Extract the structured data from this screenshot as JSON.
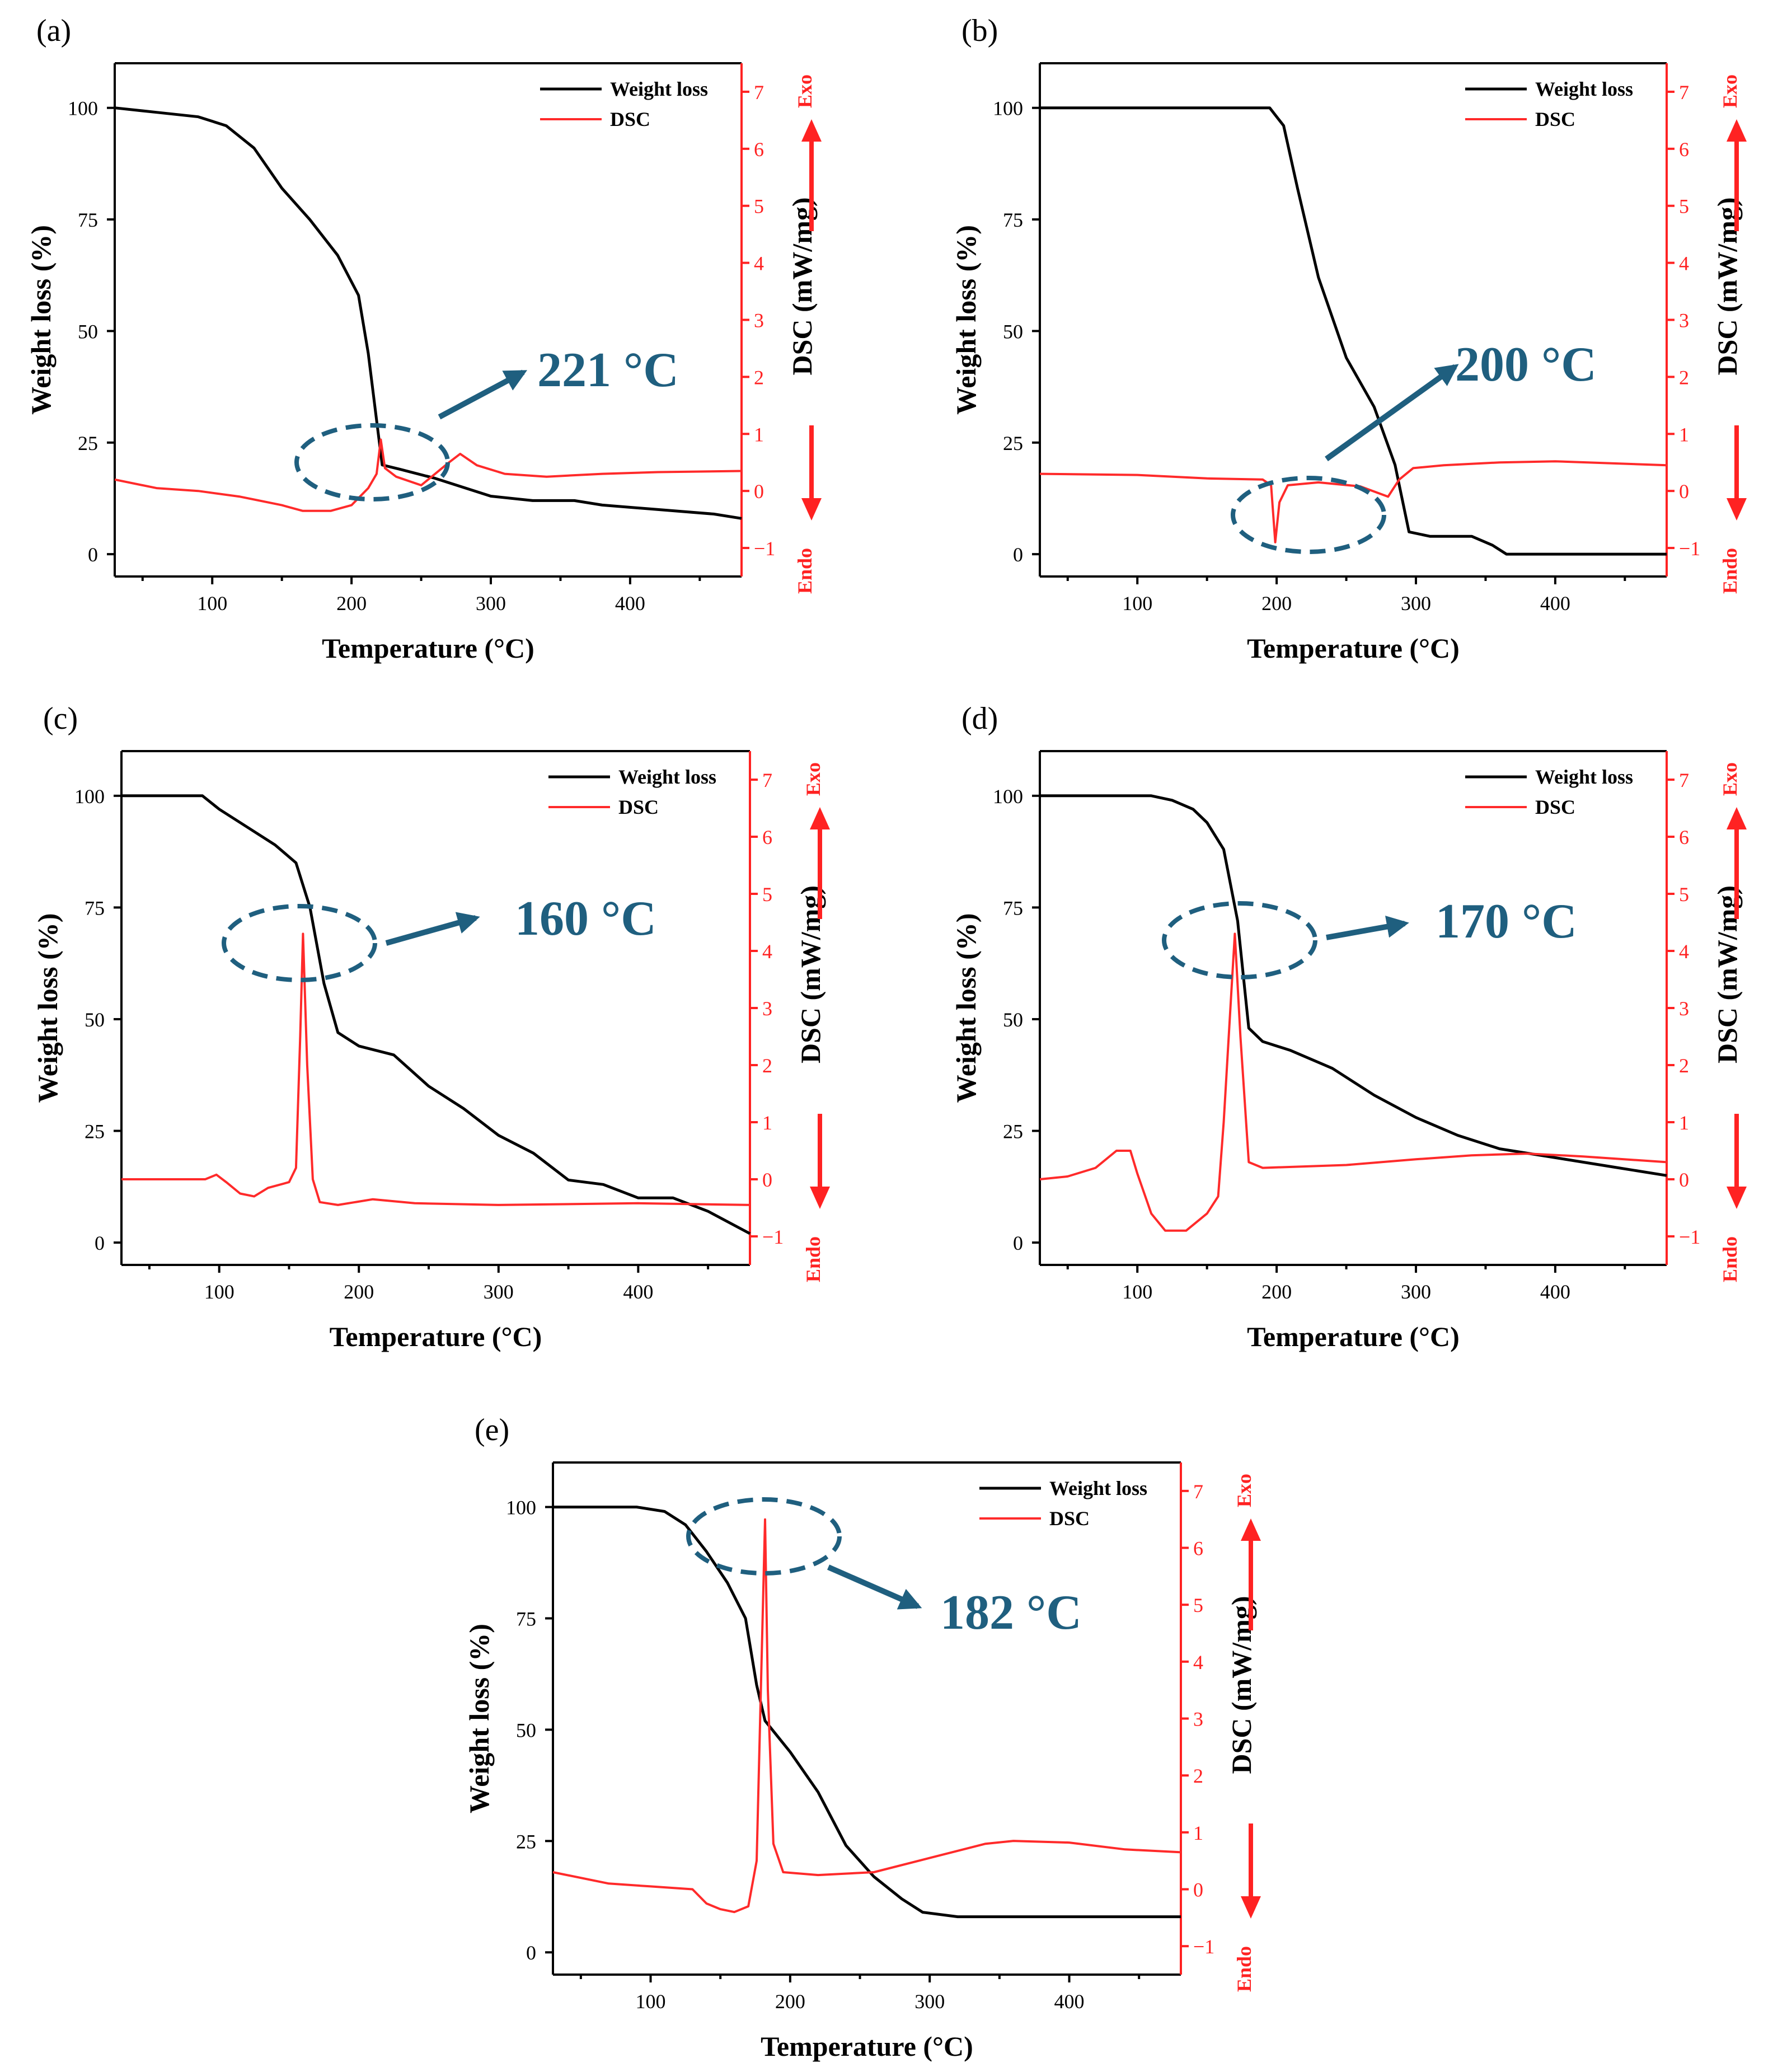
{
  "colors": {
    "weight": "#000000",
    "dsc": "#ff2a2a",
    "annotation": "#1f5f7f",
    "axis_red": "#ff2222"
  },
  "shared": {
    "xlabel": "Temperature (°C)",
    "ylabel_left": "Weight loss (%)",
    "ylabel_right": "DSC (mW/mg)",
    "legend": [
      "Weight loss",
      "DSC"
    ],
    "exo_label": "Exo",
    "endo_label": "Endo"
  },
  "chart_data": [
    {
      "panel": "(a)",
      "type": "line",
      "annotation": "221 °C",
      "xlabel": "Temperature (°C)",
      "ylabel": "Weight loss (%)",
      "y2label": "DSC (mW/mg)",
      "xlim": [
        30,
        480
      ],
      "ylim": [
        -5,
        110
      ],
      "y2lim": [
        -1.5,
        7.5
      ],
      "xticks": [
        100,
        200,
        300,
        400
      ],
      "yticks": [
        0,
        25,
        50,
        75,
        100
      ],
      "y2ticks": [
        -1,
        0,
        1,
        2,
        3,
        4,
        5,
        6,
        7
      ],
      "series": [
        {
          "name": "Weight loss",
          "points": [
            [
              30,
              100
            ],
            [
              60,
              99
            ],
            [
              90,
              98
            ],
            [
              110,
              96
            ],
            [
              130,
              91
            ],
            [
              150,
              82
            ],
            [
              170,
              75
            ],
            [
              190,
              67
            ],
            [
              205,
              58
            ],
            [
              212,
              45
            ],
            [
              218,
              30
            ],
            [
              222,
              20
            ],
            [
              235,
              19
            ],
            [
              260,
              17
            ],
            [
              300,
              13
            ],
            [
              330,
              12
            ],
            [
              360,
              12
            ],
            [
              380,
              11
            ],
            [
              420,
              10
            ],
            [
              460,
              9
            ],
            [
              480,
              8
            ]
          ]
        },
        {
          "name": "DSC",
          "points": [
            [
              30,
              0.2
            ],
            [
              60,
              0.05
            ],
            [
              90,
              0
            ],
            [
              120,
              -0.1
            ],
            [
              150,
              -0.25
            ],
            [
              165,
              -0.35
            ],
            [
              185,
              -0.35
            ],
            [
              200,
              -0.25
            ],
            [
              212,
              0.05
            ],
            [
              218,
              0.3
            ],
            [
              221,
              0.9
            ],
            [
              224,
              0.4
            ],
            [
              232,
              0.25
            ],
            [
              250,
              0.1
            ],
            [
              270,
              0.5
            ],
            [
              278,
              0.65
            ],
            [
              290,
              0.45
            ],
            [
              310,
              0.3
            ],
            [
              340,
              0.25
            ],
            [
              380,
              0.3
            ],
            [
              420,
              0.33
            ],
            [
              480,
              0.35
            ]
          ]
        }
      ]
    },
    {
      "panel": "(b)",
      "type": "line",
      "annotation": "200 °C",
      "xlabel": "Temperature (°C)",
      "ylabel": "Weight loss (%)",
      "y2label": "DSC (mW/mg)",
      "xlim": [
        30,
        480
      ],
      "ylim": [
        -5,
        110
      ],
      "y2lim": [
        -1.5,
        7.5
      ],
      "xticks": [
        100,
        200,
        300,
        400
      ],
      "yticks": [
        0,
        25,
        50,
        75,
        100
      ],
      "y2ticks": [
        -1,
        0,
        1,
        2,
        3,
        4,
        5,
        6,
        7
      ],
      "series": [
        {
          "name": "Weight loss",
          "points": [
            [
              30,
              100
            ],
            [
              180,
              100
            ],
            [
              195,
              100
            ],
            [
              205,
              96
            ],
            [
              215,
              82
            ],
            [
              230,
              62
            ],
            [
              250,
              44
            ],
            [
              270,
              33
            ],
            [
              285,
              20
            ],
            [
              295,
              5
            ],
            [
              310,
              4
            ],
            [
              340,
              4
            ],
            [
              355,
              2
            ],
            [
              365,
              0
            ],
            [
              480,
              0
            ]
          ]
        },
        {
          "name": "DSC",
          "points": [
            [
              30,
              0.3
            ],
            [
              100,
              0.28
            ],
            [
              150,
              0.22
            ],
            [
              190,
              0.2
            ],
            [
              196,
              0.1
            ],
            [
              199,
              -0.9
            ],
            [
              202,
              -0.2
            ],
            [
              208,
              0.1
            ],
            [
              230,
              0.15
            ],
            [
              260,
              0.08
            ],
            [
              280,
              -0.1
            ],
            [
              288,
              0.2
            ],
            [
              298,
              0.4
            ],
            [
              320,
              0.45
            ],
            [
              360,
              0.5
            ],
            [
              400,
              0.52
            ],
            [
              480,
              0.45
            ]
          ]
        }
      ]
    },
    {
      "panel": "(c)",
      "type": "line",
      "annotation": "160 °C",
      "xlabel": "Temperature (°C)",
      "ylabel": "Weight loss (%)",
      "y2label": "DSC (mW/mg)",
      "xlim": [
        30,
        480
      ],
      "ylim": [
        -5,
        110
      ],
      "y2lim": [
        -1.5,
        7.5
      ],
      "xticks": [
        100,
        200,
        300,
        400
      ],
      "yticks": [
        0,
        25,
        50,
        75,
        100
      ],
      "y2ticks": [
        -1,
        0,
        1,
        2,
        3,
        4,
        5,
        6,
        7
      ],
      "series": [
        {
          "name": "Weight loss",
          "points": [
            [
              30,
              100
            ],
            [
              88,
              100
            ],
            [
              100,
              97
            ],
            [
              120,
              93
            ],
            [
              140,
              89
            ],
            [
              155,
              85
            ],
            [
              165,
              75
            ],
            [
              175,
              58
            ],
            [
              185,
              47
            ],
            [
              200,
              44
            ],
            [
              225,
              42
            ],
            [
              250,
              35
            ],
            [
              275,
              30
            ],
            [
              300,
              24
            ],
            [
              325,
              20
            ],
            [
              350,
              14
            ],
            [
              375,
              13
            ],
            [
              400,
              10
            ],
            [
              425,
              10
            ],
            [
              450,
              7
            ],
            [
              480,
              2
            ]
          ]
        },
        {
          "name": "DSC",
          "points": [
            [
              30,
              0
            ],
            [
              90,
              0
            ],
            [
              98,
              0.08
            ],
            [
              105,
              -0.05
            ],
            [
              115,
              -0.25
            ],
            [
              125,
              -0.3
            ],
            [
              135,
              -0.15
            ],
            [
              150,
              -0.05
            ],
            [
              155,
              0.2
            ],
            [
              158,
              2.5
            ],
            [
              160,
              4.3
            ],
            [
              163,
              2.0
            ],
            [
              167,
              0
            ],
            [
              172,
              -0.4
            ],
            [
              185,
              -0.45
            ],
            [
              210,
              -0.35
            ],
            [
              240,
              -0.42
            ],
            [
              300,
              -0.45
            ],
            [
              400,
              -0.42
            ],
            [
              480,
              -0.45
            ]
          ]
        }
      ]
    },
    {
      "panel": "(d)",
      "type": "line",
      "annotation": "170 °C",
      "xlabel": "Temperature (°C)",
      "ylabel": "Weight loss (%)",
      "y2label": "DSC (mW/mg)",
      "xlim": [
        30,
        480
      ],
      "ylim": [
        -5,
        110
      ],
      "y2lim": [
        -1.5,
        7.5
      ],
      "xticks": [
        100,
        200,
        300,
        400
      ],
      "yticks": [
        0,
        25,
        50,
        75,
        100
      ],
      "y2ticks": [
        -1,
        0,
        1,
        2,
        3,
        4,
        5,
        6,
        7
      ],
      "series": [
        {
          "name": "Weight loss",
          "points": [
            [
              30,
              100
            ],
            [
              110,
              100
            ],
            [
              125,
              99
            ],
            [
              140,
              97
            ],
            [
              150,
              94
            ],
            [
              162,
              88
            ],
            [
              172,
              72
            ],
            [
              180,
              48
            ],
            [
              190,
              45
            ],
            [
              210,
              43
            ],
            [
              240,
              39
            ],
            [
              270,
              33
            ],
            [
              300,
              28
            ],
            [
              330,
              24
            ],
            [
              360,
              21
            ],
            [
              400,
              19
            ],
            [
              440,
              17
            ],
            [
              480,
              15
            ]
          ]
        },
        {
          "name": "DSC",
          "points": [
            [
              30,
              0
            ],
            [
              50,
              0.05
            ],
            [
              70,
              0.2
            ],
            [
              85,
              0.5
            ],
            [
              95,
              0.5
            ],
            [
              100,
              0.1
            ],
            [
              110,
              -0.6
            ],
            [
              120,
              -0.9
            ],
            [
              135,
              -0.9
            ],
            [
              150,
              -0.6
            ],
            [
              158,
              -0.3
            ],
            [
              162,
              1.0
            ],
            [
              168,
              3.5
            ],
            [
              170,
              4.3
            ],
            [
              174,
              2.5
            ],
            [
              180,
              0.3
            ],
            [
              190,
              0.2
            ],
            [
              250,
              0.25
            ],
            [
              300,
              0.35
            ],
            [
              340,
              0.42
            ],
            [
              380,
              0.45
            ],
            [
              420,
              0.4
            ],
            [
              480,
              0.3
            ]
          ]
        }
      ]
    },
    {
      "panel": "(e)",
      "type": "line",
      "annotation": "182 °C",
      "xlabel": "Temperature (°C)",
      "ylabel": "Weight loss (%)",
      "y2label": "DSC (mW/mg)",
      "xlim": [
        30,
        480
      ],
      "ylim": [
        -5,
        110
      ],
      "y2lim": [
        -1.5,
        7.5
      ],
      "xticks": [
        100,
        200,
        300,
        400
      ],
      "yticks": [
        0,
        25,
        50,
        75,
        100
      ],
      "y2ticks": [
        -1,
        0,
        1,
        2,
        3,
        4,
        5,
        6,
        7
      ],
      "series": [
        {
          "name": "Weight loss",
          "points": [
            [
              30,
              100
            ],
            [
              90,
              100
            ],
            [
              110,
              99
            ],
            [
              125,
              96
            ],
            [
              140,
              90
            ],
            [
              155,
              83
            ],
            [
              168,
              75
            ],
            [
              176,
              60
            ],
            [
              182,
              52
            ],
            [
              200,
              45
            ],
            [
              220,
              36
            ],
            [
              240,
              24
            ],
            [
              260,
              17
            ],
            [
              280,
              12
            ],
            [
              295,
              9
            ],
            [
              320,
              8
            ],
            [
              480,
              8
            ]
          ]
        },
        {
          "name": "DSC",
          "points": [
            [
              30,
              0.3
            ],
            [
              70,
              0.1
            ],
            [
              100,
              0.05
            ],
            [
              130,
              0
            ],
            [
              140,
              -0.25
            ],
            [
              150,
              -0.35
            ],
            [
              160,
              -0.4
            ],
            [
              170,
              -0.3
            ],
            [
              176,
              0.5
            ],
            [
              180,
              4.5
            ],
            [
              182,
              6.5
            ],
            [
              184,
              3.5
            ],
            [
              188,
              0.8
            ],
            [
              195,
              0.3
            ],
            [
              220,
              0.25
            ],
            [
              260,
              0.3
            ],
            [
              300,
              0.55
            ],
            [
              340,
              0.8
            ],
            [
              360,
              0.85
            ],
            [
              400,
              0.82
            ],
            [
              440,
              0.7
            ],
            [
              480,
              0.65
            ]
          ]
        }
      ]
    }
  ]
}
